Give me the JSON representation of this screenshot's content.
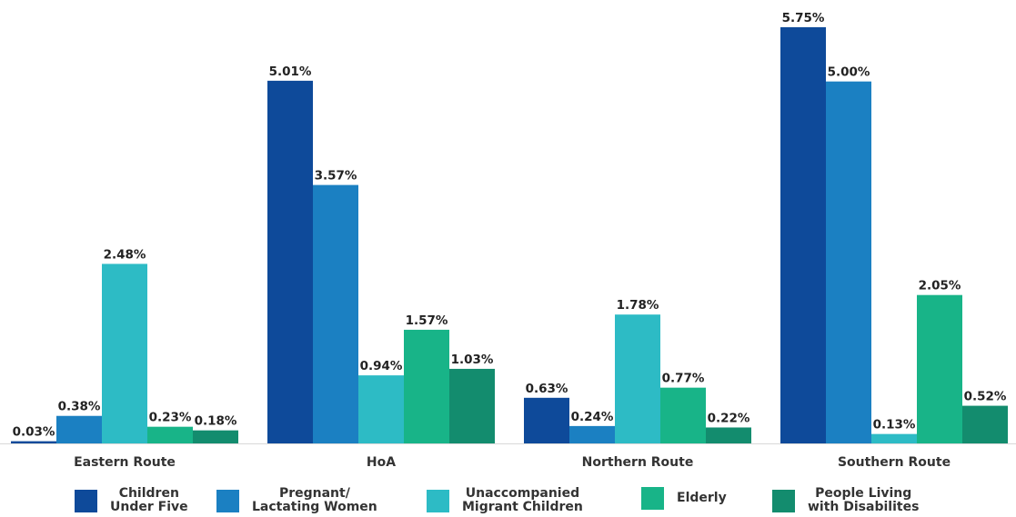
{
  "chart_data": {
    "type": "bar",
    "categories": [
      "Eastern Route",
      "HoA",
      "Northern Route",
      "Southern Route"
    ],
    "series": [
      {
        "name": "Children Under Five",
        "color": "#0e4a9a",
        "values": [
          0.03,
          5.01,
          0.63,
          5.75
        ],
        "labels": [
          "0.03%",
          "5.01%",
          "0.63%",
          "5.75%"
        ]
      },
      {
        "name": "Pregnant/ Lactating Women",
        "color": "#1b80c2",
        "values": [
          0.38,
          3.57,
          0.24,
          5.0
        ],
        "labels": [
          "0.38%",
          "3.57%",
          "0.24%",
          "5.00%"
        ]
      },
      {
        "name": "Unaccompanied Migrant Children",
        "color": "#2dbbc5",
        "values": [
          2.48,
          0.94,
          1.78,
          0.13
        ],
        "labels": [
          "2.48%",
          "0.94%",
          "1.78%",
          "0.13%"
        ]
      },
      {
        "name": "Elderly",
        "color": "#18b488",
        "values": [
          0.23,
          1.57,
          0.77,
          2.05
        ],
        "labels": [
          "0.23%",
          "1.57%",
          "0.77%",
          "2.05%"
        ]
      },
      {
        "name": "People Living with Disabilites",
        "color": "#138c6e",
        "values": [
          0.18,
          1.03,
          0.22,
          0.52
        ],
        "labels": [
          "0.18%",
          "1.03%",
          "0.22%",
          "0.52%"
        ]
      }
    ],
    "ylim": [
      0,
      6.0
    ],
    "grid": false,
    "legend_position": "bottom"
  },
  "legend": [
    {
      "text": "Children\nUnder Five",
      "color": "#0e4a9a"
    },
    {
      "text": "Pregnant/\nLactating Women",
      "color": "#1b80c2"
    },
    {
      "text": "Unaccompanied\nMigrant Children",
      "color": "#2dbbc5"
    },
    {
      "text": "Elderly",
      "color": "#18b488"
    },
    {
      "text": "People Living\nwith Disabilites",
      "color": "#138c6e"
    }
  ]
}
